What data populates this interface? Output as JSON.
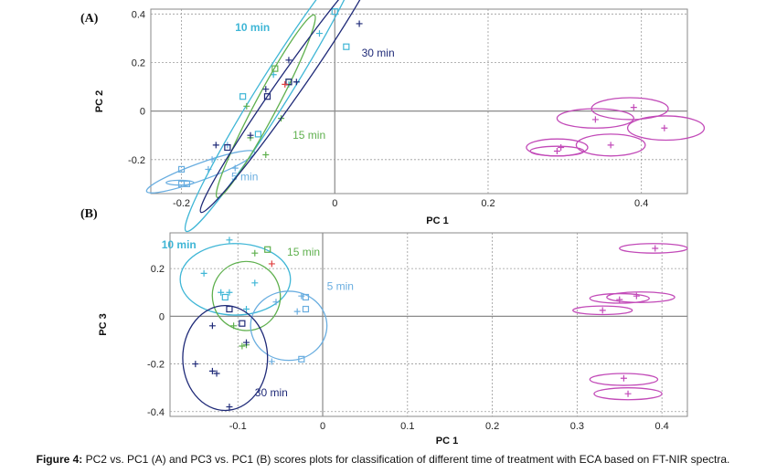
{
  "caption": {
    "label": "Figure 4:",
    "text": "PC2 vs. PC1 (A) and PC3 vs. PC1 (B) scores plots for classification of different time of treatment with ECA based on FT-NIR spectra."
  },
  "colors": {
    "5min": "#6aaee0",
    "10min": "#3fb6d6",
    "15min": "#5fb04e",
    "30min": "#1f2a78",
    "control": "#c24ab8",
    "red": "#e04040",
    "axis": "#8a8a8a",
    "grid": "#9a9a9a"
  },
  "chart_data": [
    {
      "panel": "(A)",
      "type": "scatter",
      "xlabel": "PC 1",
      "ylabel": "PC 2",
      "xlim": [
        -0.24,
        0.46
      ],
      "ylim": [
        -0.34,
        0.42
      ],
      "xticks": [
        -0.2,
        0,
        0.2,
        0.4
      ],
      "xtick_labels": [
        "-0.2",
        "0",
        "0.2",
        "0.4"
      ],
      "yticks": [
        -0.2,
        0,
        0.2,
        0.4
      ],
      "ytick_labels": [
        "-0.2",
        "0",
        "0.2",
        "0.4"
      ],
      "grid": true,
      "groups": [
        {
          "label": "5 min",
          "color_key": "5min",
          "bold": false,
          "label_pos": [
            -0.135,
            -0.285
          ],
          "ellipses": [
            {
              "cx": -0.175,
              "cy": -0.25,
              "rx": 0.075,
              "ry": 0.035,
              "angle": 20
            },
            {
              "cx": -0.202,
              "cy": -0.295,
              "rx": 0.018,
              "ry": 0.01,
              "angle": 0
            }
          ],
          "points": [
            {
              "x": -0.2,
              "y": -0.24,
              "marker": "square"
            },
            {
              "x": -0.2,
              "y": -0.3,
              "marker": "square"
            },
            {
              "x": -0.193,
              "y": -0.3,
              "marker": "square"
            },
            {
              "x": -0.16,
              "y": -0.2,
              "marker": "cross"
            },
            {
              "x": -0.165,
              "y": -0.24,
              "marker": "cross"
            },
            {
              "x": -0.13,
              "y": -0.235,
              "marker": "cross"
            },
            {
              "x": -0.14,
              "y": -0.14,
              "marker": "cross"
            }
          ]
        },
        {
          "label": "10 min",
          "color_key": "10min",
          "bold": true,
          "label_pos": [
            -0.13,
            0.33
          ],
          "ellipses": [
            {
              "cx": -0.08,
              "cy": 0.08,
              "rx": 0.215,
              "ry": 0.065,
              "angle": 58
            }
          ],
          "points": [
            {
              "x": 0.0,
              "y": 0.41,
              "marker": "square"
            },
            {
              "x": 0.015,
              "y": 0.265,
              "marker": "square"
            },
            {
              "x": -0.12,
              "y": 0.06,
              "marker": "square"
            },
            {
              "x": -0.1,
              "y": -0.095,
              "marker": "square"
            },
            {
              "x": -0.02,
              "y": 0.32,
              "marker": "cross"
            },
            {
              "x": -0.08,
              "y": 0.15,
              "marker": "cross"
            },
            {
              "x": -0.06,
              "y": 0.11,
              "marker": "cross"
            }
          ]
        },
        {
          "label": "15 min",
          "color_key": "15min",
          "bold": false,
          "label_pos": [
            -0.055,
            -0.115
          ],
          "ellipses": [
            {
              "cx": -0.09,
              "cy": 0.02,
              "rx": 0.135,
              "ry": 0.045,
              "angle": 62
            }
          ],
          "points": [
            {
              "x": -0.078,
              "y": 0.175,
              "marker": "square"
            },
            {
              "x": -0.06,
              "y": 0.12,
              "marker": "square"
            },
            {
              "x": -0.11,
              "y": -0.11,
              "marker": "cross"
            },
            {
              "x": -0.09,
              "y": -0.18,
              "marker": "cross"
            },
            {
              "x": -0.07,
              "y": -0.03,
              "marker": "cross"
            },
            {
              "x": -0.115,
              "y": 0.02,
              "marker": "cross"
            }
          ]
        },
        {
          "label": "30 min",
          "color_key": "30min",
          "bold": false,
          "label_pos": [
            0.035,
            0.225
          ],
          "ellipses": [
            {
              "cx": -0.06,
              "cy": 0.1,
              "rx": 0.2,
              "ry": 0.05,
              "angle": 55
            }
          ],
          "points": [
            {
              "x": 0.032,
              "y": 0.36,
              "marker": "cross"
            },
            {
              "x": -0.06,
              "y": 0.21,
              "marker": "cross"
            },
            {
              "x": -0.088,
              "y": 0.06,
              "marker": "square"
            },
            {
              "x": -0.09,
              "y": 0.09,
              "marker": "cross"
            },
            {
              "x": -0.05,
              "y": 0.12,
              "marker": "cross"
            },
            {
              "x": -0.11,
              "y": -0.1,
              "marker": "cross"
            },
            {
              "x": -0.14,
              "y": -0.15,
              "marker": "square"
            },
            {
              "x": -0.155,
              "y": -0.14,
              "marker": "cross"
            },
            {
              "x": -0.06,
              "y": 0.12,
              "marker": "square"
            }
          ]
        },
        {
          "label": "",
          "color_key": "red",
          "bold": false,
          "label_pos": null,
          "ellipses": [],
          "points": [
            {
              "x": -0.065,
              "y": 0.11,
              "marker": "cross"
            }
          ]
        },
        {
          "label": "",
          "color_key": "control",
          "bold": false,
          "label_pos": null,
          "ellipses": [
            {
              "cx": 0.385,
              "cy": 0.01,
              "rx": 0.05,
              "ry": 0.045,
              "angle": 0
            },
            {
              "cx": 0.34,
              "cy": -0.03,
              "rx": 0.05,
              "ry": 0.04,
              "angle": 0
            },
            {
              "cx": 0.432,
              "cy": -0.07,
              "rx": 0.05,
              "ry": 0.05,
              "angle": 0
            },
            {
              "cx": 0.36,
              "cy": -0.14,
              "rx": 0.045,
              "ry": 0.045,
              "angle": 0
            },
            {
              "cx": 0.29,
              "cy": -0.165,
              "rx": 0.035,
              "ry": 0.02,
              "angle": 0
            },
            {
              "cx": 0.29,
              "cy": -0.15,
              "rx": 0.04,
              "ry": 0.035,
              "angle": 0
            }
          ],
          "points": [
            {
              "x": 0.39,
              "y": 0.015,
              "marker": "cross"
            },
            {
              "x": 0.34,
              "y": -0.035,
              "marker": "cross"
            },
            {
              "x": 0.43,
              "y": -0.07,
              "marker": "cross"
            },
            {
              "x": 0.36,
              "y": -0.14,
              "marker": "cross"
            },
            {
              "x": 0.29,
              "y": -0.165,
              "marker": "cross"
            },
            {
              "x": 0.295,
              "y": -0.15,
              "marker": "cross"
            }
          ]
        }
      ]
    },
    {
      "panel": "(B)",
      "type": "scatter",
      "xlabel": "PC 1",
      "ylabel": "PC 3",
      "xlim": [
        -0.18,
        0.43
      ],
      "ylim": [
        -0.42,
        0.35
      ],
      "xticks": [
        -0.1,
        0,
        0.1,
        0.2,
        0.3,
        0.4
      ],
      "xtick_labels": [
        "-0.1",
        "0",
        "0.1",
        "0.2",
        "0.3",
        "0.4"
      ],
      "yticks": [
        -0.4,
        -0.2,
        0,
        0.2
      ],
      "ytick_labels": [
        "-0.4",
        "-0.2",
        "0",
        "0.2"
      ],
      "grid": true,
      "groups": [
        {
          "label": "10 min",
          "color_key": "10min",
          "bold": true,
          "label_pos": [
            -0.19,
            0.285
          ],
          "ellipses": [
            {
              "cx": -0.103,
              "cy": 0.155,
              "rx": 0.065,
              "ry": 0.15,
              "angle": 0
            }
          ],
          "points": [
            {
              "x": -0.11,
              "y": 0.32,
              "marker": "cross"
            },
            {
              "x": -0.14,
              "y": 0.18,
              "marker": "cross"
            },
            {
              "x": -0.115,
              "y": 0.08,
              "marker": "square"
            },
            {
              "x": -0.11,
              "y": 0.1,
              "marker": "cross"
            },
            {
              "x": -0.08,
              "y": 0.14,
              "marker": "cross"
            },
            {
              "x": -0.09,
              "y": 0.03,
              "marker": "cross"
            },
            {
              "x": -0.12,
              "y": 0.1,
              "marker": "cross"
            }
          ]
        },
        {
          "label": "15 min",
          "color_key": "15min",
          "bold": false,
          "label_pos": [
            -0.042,
            0.255
          ],
          "ellipses": [
            {
              "cx": -0.09,
              "cy": 0.085,
              "rx": 0.04,
              "ry": 0.145,
              "angle": 15
            }
          ],
          "points": [
            {
              "x": -0.065,
              "y": 0.28,
              "marker": "square"
            },
            {
              "x": -0.08,
              "y": 0.265,
              "marker": "cross"
            },
            {
              "x": -0.105,
              "y": -0.04,
              "marker": "cross"
            },
            {
              "x": -0.095,
              "y": -0.125,
              "marker": "cross"
            },
            {
              "x": -0.09,
              "y": -0.12,
              "marker": "cross"
            }
          ]
        },
        {
          "label": "5 min",
          "color_key": "5min",
          "bold": false,
          "label_pos": [
            0.005,
            0.11
          ],
          "ellipses": [
            {
              "cx": -0.04,
              "cy": -0.04,
              "rx": 0.045,
              "ry": 0.145,
              "angle": 0
            }
          ],
          "points": [
            {
              "x": -0.025,
              "y": 0.085,
              "marker": "cross"
            },
            {
              "x": -0.02,
              "y": 0.08,
              "marker": "square"
            },
            {
              "x": -0.02,
              "y": 0.03,
              "marker": "square"
            },
            {
              "x": -0.03,
              "y": 0.02,
              "marker": "cross"
            },
            {
              "x": -0.025,
              "y": -0.18,
              "marker": "square"
            },
            {
              "x": -0.06,
              "y": -0.19,
              "marker": "cross"
            },
            {
              "x": -0.055,
              "y": 0.06,
              "marker": "cross"
            }
          ]
        },
        {
          "label": "30 min",
          "color_key": "30min",
          "bold": false,
          "label_pos": [
            -0.08,
            -0.335
          ],
          "ellipses": [
            {
              "cx": -0.115,
              "cy": -0.175,
              "rx": 0.05,
              "ry": 0.22,
              "angle": 0
            }
          ],
          "points": [
            {
              "x": -0.15,
              "y": -0.2,
              "marker": "cross"
            },
            {
              "x": -0.13,
              "y": -0.23,
              "marker": "cross"
            },
            {
              "x": -0.125,
              "y": -0.24,
              "marker": "cross"
            },
            {
              "x": -0.11,
              "y": -0.38,
              "marker": "cross"
            },
            {
              "x": -0.095,
              "y": -0.03,
              "marker": "square"
            },
            {
              "x": -0.13,
              "y": -0.04,
              "marker": "cross"
            },
            {
              "x": -0.09,
              "y": -0.11,
              "marker": "cross"
            },
            {
              "x": -0.11,
              "y": 0.03,
              "marker": "square"
            }
          ]
        },
        {
          "label": "",
          "color_key": "red",
          "bold": false,
          "label_pos": null,
          "ellipses": [],
          "points": [
            {
              "x": -0.06,
              "y": 0.22,
              "marker": "cross"
            }
          ]
        },
        {
          "label": "",
          "color_key": "control",
          "bold": false,
          "label_pos": null,
          "ellipses": [
            {
              "cx": 0.39,
              "cy": 0.285,
              "rx": 0.04,
              "ry": 0.02,
              "angle": 0
            },
            {
              "cx": 0.375,
              "cy": 0.08,
              "rx": 0.04,
              "ry": 0.022,
              "angle": 0
            },
            {
              "cx": 0.35,
              "cy": 0.075,
              "rx": 0.035,
              "ry": 0.02,
              "angle": 0
            },
            {
              "cx": 0.33,
              "cy": 0.025,
              "rx": 0.035,
              "ry": 0.018,
              "angle": 0
            },
            {
              "cx": 0.355,
              "cy": -0.265,
              "rx": 0.04,
              "ry": 0.025,
              "angle": 0
            },
            {
              "cx": 0.36,
              "cy": -0.325,
              "rx": 0.04,
              "ry": 0.025,
              "angle": 0
            }
          ],
          "points": [
            {
              "x": 0.392,
              "y": 0.285,
              "marker": "cross"
            },
            {
              "x": 0.37,
              "y": 0.085,
              "marker": "cross"
            },
            {
              "x": 0.35,
              "y": 0.07,
              "marker": "cross"
            },
            {
              "x": 0.33,
              "y": 0.025,
              "marker": "cross"
            },
            {
              "x": 0.355,
              "y": -0.26,
              "marker": "cross"
            },
            {
              "x": 0.36,
              "y": -0.325,
              "marker": "cross"
            }
          ]
        }
      ]
    }
  ]
}
